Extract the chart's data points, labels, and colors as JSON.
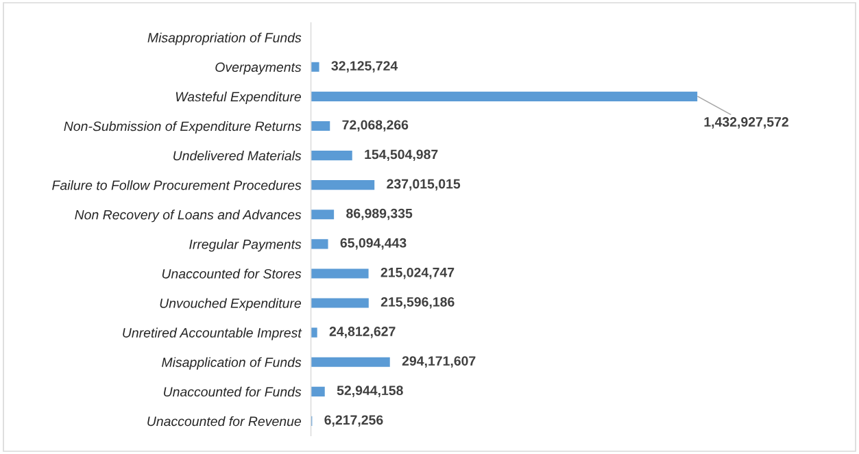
{
  "chart_data": {
    "type": "bar",
    "orientation": "horizontal",
    "categories": [
      "Misappropriation of Funds",
      "Overpayments",
      "Wasteful Expenditure",
      "Non-Submission of Expenditure Returns",
      "Undelivered Materials",
      "Failure to Follow Procurement Procedures",
      "Non Recovery of Loans and Advances",
      "Irregular Payments",
      "Unaccounted for Stores",
      "Unvouched Expenditure",
      "Unretired Accountable Imprest",
      "Misapplication of Funds",
      "Unaccounted for Funds",
      "Unaccounted for Revenue"
    ],
    "values": [
      null,
      32125724,
      1432927572,
      72068266,
      154504987,
      237015015,
      86989335,
      65094443,
      215024747,
      215596186,
      24812627,
      294171607,
      52944158,
      6217256
    ],
    "value_labels": [
      null,
      "32,125,724",
      "1,432,927,572",
      "72,068,266",
      "154,504,987",
      "237,015,015",
      "86,989,335",
      "65,094,443",
      "215,024,747",
      "215,596,186",
      "24,812,627",
      "294,171,607",
      "52,944,158",
      "6,217,256"
    ],
    "color": "#5b9bd5",
    "grid": false,
    "legend": false
  }
}
